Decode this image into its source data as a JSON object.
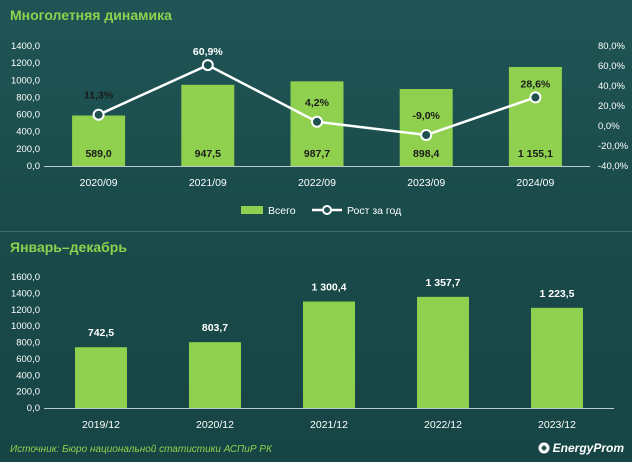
{
  "colors": {
    "bar": "#8fd14f",
    "line": "#ffffff",
    "title": "#8fd14f",
    "text": "#ffffff"
  },
  "source_text": "Источник: Бюро национальной статистики АСПиР РК",
  "logo_text": "EnergyProm",
  "chart_data": [
    {
      "type": "bar",
      "title": "Многолетняя динамика",
      "categories": [
        "2020/09",
        "2021/09",
        "2022/09",
        "2023/09",
        "2024/09"
      ],
      "series": [
        {
          "name": "Всего",
          "type": "bar",
          "axis": "left",
          "values": [
            589.0,
            947.5,
            987.7,
            898.4,
            1155.1
          ],
          "labels": [
            "589,0",
            "947,5",
            "987,7",
            "898,4",
            "1 155,1"
          ]
        },
        {
          "name": "Рост за год",
          "type": "line",
          "axis": "right",
          "values": [
            11.3,
            60.9,
            4.2,
            -9.0,
            28.6
          ],
          "labels": [
            "11,3%",
            "60,9%",
            "4,2%",
            "-9,0%",
            "28,6%"
          ]
        }
      ],
      "ylim": [
        0,
        1400
      ],
      "yticks": [
        "0,0",
        "200,0",
        "400,0",
        "600,0",
        "800,0",
        "1000,0",
        "1200,0",
        "1400,0"
      ],
      "y2lim": [
        -40,
        80
      ],
      "y2ticks": [
        "-40,0%",
        "-20,0%",
        "0,0%",
        "20,0%",
        "40,0%",
        "60,0%",
        "80,0%"
      ],
      "legend": "bottom",
      "grid": false
    },
    {
      "type": "bar",
      "title": "Январь–декабрь",
      "categories": [
        "2019/12",
        "2020/12",
        "2021/12",
        "2022/12",
        "2023/12"
      ],
      "series": [
        {
          "name": "",
          "values": [
            742.5,
            803.7,
            1300.4,
            1357.7,
            1223.5
          ],
          "labels": [
            "742,5",
            "803,7",
            "1 300,4",
            "1 357,7",
            "1 223,5"
          ]
        }
      ],
      "ylim": [
        0,
        1600
      ],
      "yticks": [
        "0,0",
        "200,0",
        "400,0",
        "600,0",
        "800,0",
        "1000,0",
        "1200,0",
        "1400,0",
        "1600,0"
      ],
      "grid": false
    }
  ]
}
